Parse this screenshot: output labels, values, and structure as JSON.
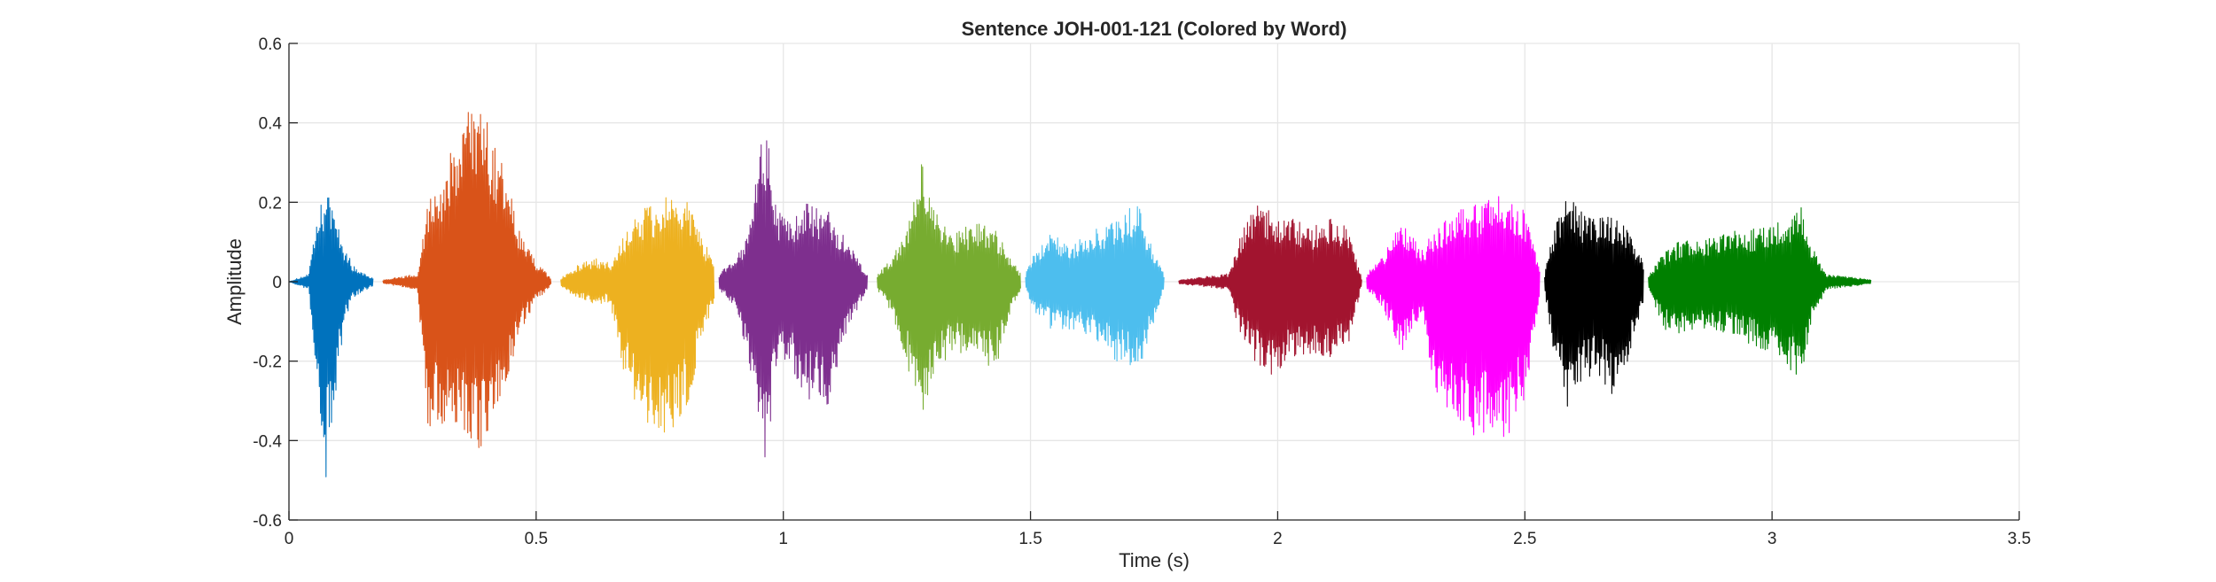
{
  "chart_data": {
    "type": "line",
    "title": "Sentence JOH-001-121 (Colored by Word)",
    "xlabel": "Time (s)",
    "ylabel": "Amplitude",
    "xlim": [
      0,
      3.5
    ],
    "ylim": [
      -0.6,
      0.6
    ],
    "xticks": [
      0,
      0.5,
      1,
      1.5,
      2,
      2.5,
      3,
      3.5
    ],
    "xtick_labels": [
      "0",
      "0.5",
      "1",
      "1.5",
      "2",
      "2.5",
      "3",
      "3.5"
    ],
    "yticks": [
      -0.6,
      -0.4,
      -0.2,
      0,
      0.2,
      0.4,
      0.6
    ],
    "ytick_labels": [
      "-0.6",
      "-0.4",
      "-0.2",
      "0",
      "0.2",
      "0.4",
      "0.6"
    ],
    "grid": true,
    "legend": "none",
    "series": [
      {
        "color": "#0072BD",
        "start": 0.0,
        "end": 0.17,
        "env": [
          [
            0,
            0
          ],
          [
            0.04,
            0.02
          ],
          [
            0.06,
            0.18
          ],
          [
            0.075,
            0.23
          ],
          [
            0.09,
            0.2
          ],
          [
            0.11,
            0.1
          ],
          [
            0.13,
            0.04
          ],
          [
            0.17,
            0.01
          ]
        ],
        "neg": [
          [
            0,
            0
          ],
          [
            0.04,
            0.02
          ],
          [
            0.065,
            0.4
          ],
          [
            0.075,
            0.5
          ],
          [
            0.09,
            0.35
          ],
          [
            0.11,
            0.12
          ],
          [
            0.13,
            0.04
          ],
          [
            0.17,
            0.01
          ]
        ]
      },
      {
        "color": "#D95319",
        "start": 0.19,
        "end": 0.53,
        "env": [
          [
            0,
            0.005
          ],
          [
            0.07,
            0.02
          ],
          [
            0.09,
            0.2
          ],
          [
            0.13,
            0.3
          ],
          [
            0.17,
            0.44
          ],
          [
            0.2,
            0.46
          ],
          [
            0.24,
            0.3
          ],
          [
            0.28,
            0.12
          ],
          [
            0.31,
            0.05
          ],
          [
            0.34,
            0.01
          ]
        ],
        "neg": [
          [
            0,
            0.005
          ],
          [
            0.07,
            0.02
          ],
          [
            0.09,
            0.38
          ],
          [
            0.13,
            0.35
          ],
          [
            0.17,
            0.4
          ],
          [
            0.2,
            0.45
          ],
          [
            0.24,
            0.32
          ],
          [
            0.28,
            0.12
          ],
          [
            0.31,
            0.05
          ],
          [
            0.34,
            0.01
          ]
        ]
      },
      {
        "color": "#EDB120",
        "start": 0.55,
        "end": 0.86,
        "env": [
          [
            0,
            0.01
          ],
          [
            0.03,
            0.04
          ],
          [
            0.07,
            0.06
          ],
          [
            0.1,
            0.05
          ],
          [
            0.12,
            0.1
          ],
          [
            0.16,
            0.18
          ],
          [
            0.22,
            0.22
          ],
          [
            0.26,
            0.2
          ],
          [
            0.29,
            0.1
          ],
          [
            0.31,
            0.05
          ]
        ],
        "neg": [
          [
            0,
            0.01
          ],
          [
            0.03,
            0.04
          ],
          [
            0.07,
            0.06
          ],
          [
            0.1,
            0.05
          ],
          [
            0.12,
            0.2
          ],
          [
            0.16,
            0.34
          ],
          [
            0.22,
            0.4
          ],
          [
            0.26,
            0.3
          ],
          [
            0.29,
            0.12
          ],
          [
            0.31,
            0.06
          ]
        ]
      },
      {
        "color": "#7E2F8E",
        "start": 0.87,
        "end": 1.17,
        "env": [
          [
            0,
            0.02
          ],
          [
            0.03,
            0.06
          ],
          [
            0.06,
            0.12
          ],
          [
            0.08,
            0.32
          ],
          [
            0.1,
            0.42
          ],
          [
            0.11,
            0.2
          ],
          [
            0.14,
            0.15
          ],
          [
            0.18,
            0.2
          ],
          [
            0.22,
            0.18
          ],
          [
            0.26,
            0.1
          ],
          [
            0.3,
            0.02
          ]
        ],
        "neg": [
          [
            0,
            0.02
          ],
          [
            0.03,
            0.06
          ],
          [
            0.06,
            0.2
          ],
          [
            0.08,
            0.36
          ],
          [
            0.1,
            0.52
          ],
          [
            0.11,
            0.22
          ],
          [
            0.14,
            0.2
          ],
          [
            0.18,
            0.3
          ],
          [
            0.22,
            0.32
          ],
          [
            0.26,
            0.12
          ],
          [
            0.3,
            0.02
          ]
        ]
      },
      {
        "color": "#77AC30",
        "start": 1.19,
        "end": 1.48,
        "env": [
          [
            0,
            0.02
          ],
          [
            0.03,
            0.06
          ],
          [
            0.06,
            0.14
          ],
          [
            0.09,
            0.34
          ],
          [
            0.11,
            0.2
          ],
          [
            0.15,
            0.12
          ],
          [
            0.2,
            0.15
          ],
          [
            0.24,
            0.13
          ],
          [
            0.27,
            0.06
          ],
          [
            0.29,
            0.02
          ]
        ],
        "neg": [
          [
            0,
            0.02
          ],
          [
            0.03,
            0.08
          ],
          [
            0.06,
            0.2
          ],
          [
            0.09,
            0.4
          ],
          [
            0.11,
            0.24
          ],
          [
            0.15,
            0.18
          ],
          [
            0.2,
            0.2
          ],
          [
            0.24,
            0.22
          ],
          [
            0.27,
            0.08
          ],
          [
            0.29,
            0.02
          ]
        ]
      },
      {
        "color": "#4DBEEE",
        "start": 1.49,
        "end": 1.77,
        "env": [
          [
            0,
            0.02
          ],
          [
            0.02,
            0.08
          ],
          [
            0.05,
            0.12
          ],
          [
            0.1,
            0.1
          ],
          [
            0.15,
            0.14
          ],
          [
            0.2,
            0.18
          ],
          [
            0.23,
            0.2
          ],
          [
            0.26,
            0.08
          ],
          [
            0.28,
            0.02
          ]
        ],
        "neg": [
          [
            0,
            0.02
          ],
          [
            0.02,
            0.08
          ],
          [
            0.05,
            0.12
          ],
          [
            0.1,
            0.12
          ],
          [
            0.15,
            0.16
          ],
          [
            0.2,
            0.22
          ],
          [
            0.23,
            0.24
          ],
          [
            0.26,
            0.1
          ],
          [
            0.28,
            0.02
          ]
        ]
      },
      {
        "color": "#A2142F",
        "start": 1.8,
        "end": 2.17,
        "env": [
          [
            0,
            0.005
          ],
          [
            0.1,
            0.02
          ],
          [
            0.12,
            0.1
          ],
          [
            0.15,
            0.2
          ],
          [
            0.18,
            0.18
          ],
          [
            0.23,
            0.16
          ],
          [
            0.27,
            0.14
          ],
          [
            0.31,
            0.16
          ],
          [
            0.34,
            0.14
          ],
          [
            0.37,
            0.01
          ]
        ],
        "neg": [
          [
            0,
            0.005
          ],
          [
            0.1,
            0.02
          ],
          [
            0.12,
            0.12
          ],
          [
            0.15,
            0.2
          ],
          [
            0.18,
            0.25
          ],
          [
            0.23,
            0.2
          ],
          [
            0.27,
            0.18
          ],
          [
            0.31,
            0.2
          ],
          [
            0.34,
            0.18
          ],
          [
            0.37,
            0.01
          ]
        ]
      },
      {
        "color": "#FF00FF",
        "start": 2.18,
        "end": 2.53,
        "env": [
          [
            0,
            0.02
          ],
          [
            0.03,
            0.06
          ],
          [
            0.07,
            0.16
          ],
          [
            0.11,
            0.08
          ],
          [
            0.14,
            0.14
          ],
          [
            0.18,
            0.18
          ],
          [
            0.23,
            0.2
          ],
          [
            0.28,
            0.22
          ],
          [
            0.32,
            0.18
          ],
          [
            0.35,
            0.03
          ]
        ],
        "neg": [
          [
            0,
            0.02
          ],
          [
            0.03,
            0.06
          ],
          [
            0.07,
            0.18
          ],
          [
            0.11,
            0.08
          ],
          [
            0.14,
            0.28
          ],
          [
            0.18,
            0.35
          ],
          [
            0.23,
            0.4
          ],
          [
            0.28,
            0.42
          ],
          [
            0.32,
            0.3
          ],
          [
            0.35,
            0.04
          ]
        ]
      },
      {
        "color": "#000000",
        "start": 2.54,
        "end": 2.74,
        "env": [
          [
            0,
            0.02
          ],
          [
            0.02,
            0.15
          ],
          [
            0.05,
            0.22
          ],
          [
            0.08,
            0.17
          ],
          [
            0.11,
            0.16
          ],
          [
            0.14,
            0.17
          ],
          [
            0.17,
            0.14
          ],
          [
            0.2,
            0.05
          ]
        ],
        "neg": [
          [
            0,
            0.02
          ],
          [
            0.02,
            0.22
          ],
          [
            0.05,
            0.34
          ],
          [
            0.08,
            0.24
          ],
          [
            0.11,
            0.24
          ],
          [
            0.14,
            0.3
          ],
          [
            0.17,
            0.2
          ],
          [
            0.2,
            0.06
          ]
        ]
      },
      {
        "color": "#008000",
        "start": 2.75,
        "end": 3.2,
        "env": [
          [
            0,
            0.02
          ],
          [
            0.03,
            0.07
          ],
          [
            0.06,
            0.1
          ],
          [
            0.12,
            0.11
          ],
          [
            0.18,
            0.13
          ],
          [
            0.24,
            0.14
          ],
          [
            0.28,
            0.17
          ],
          [
            0.31,
            0.2
          ],
          [
            0.33,
            0.09
          ],
          [
            0.36,
            0.02
          ],
          [
            0.45,
            0.005
          ]
        ],
        "neg": [
          [
            0,
            0.02
          ],
          [
            0.03,
            0.12
          ],
          [
            0.06,
            0.14
          ],
          [
            0.12,
            0.12
          ],
          [
            0.18,
            0.14
          ],
          [
            0.24,
            0.18
          ],
          [
            0.28,
            0.22
          ],
          [
            0.31,
            0.25
          ],
          [
            0.33,
            0.1
          ],
          [
            0.36,
            0.02
          ],
          [
            0.45,
            0.005
          ]
        ]
      }
    ]
  }
}
